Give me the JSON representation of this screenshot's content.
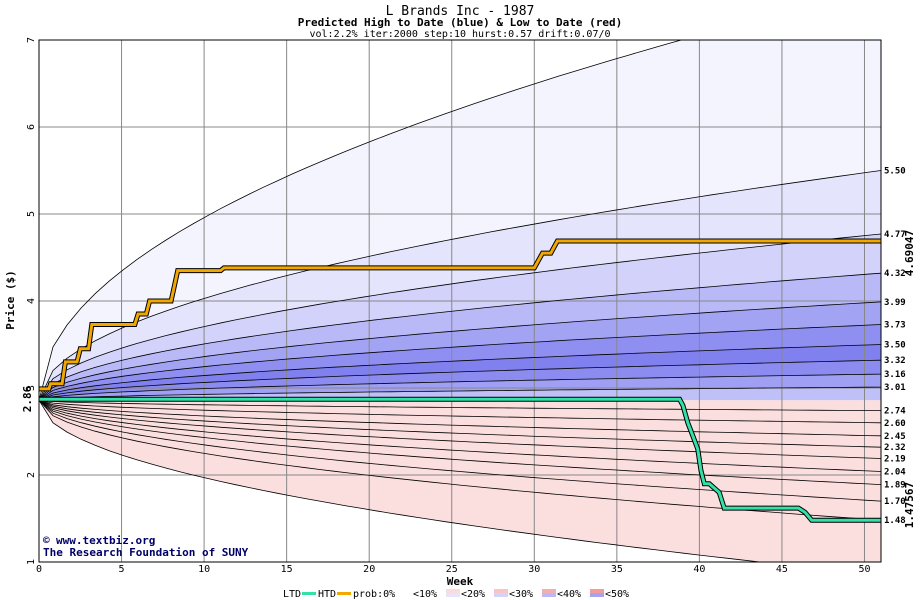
{
  "chart_data": {
    "type": "area",
    "title": "L Brands Inc - 1987",
    "subtitle": "Predicted High to Date (blue) &  Low to Date (red)",
    "params": "vol:2.2% iter:2000 step:10 hurst:0.57 drift:0.07/0",
    "xlabel": "Week",
    "ylabel": "Price ($)",
    "xlim": [
      0,
      51
    ],
    "ylim": [
      1,
      7
    ],
    "x_ticks": [
      "0",
      "5",
      "10",
      "15",
      "20",
      "25",
      "30",
      "35",
      "40",
      "45",
      "50"
    ],
    "y_ticks": [
      "1",
      "2",
      "3",
      "4",
      "5",
      "6",
      "7"
    ],
    "start_price_label": "2.86",
    "start_price": 2.86,
    "htd_value_label": "4.69047",
    "ltd_value_label": "1.47567",
    "right_labels": [
      "5.50",
      "4.77",
      "4.32",
      "3.99",
      "3.73",
      "3.50",
      "3.32",
      "3.16",
      "3.01",
      "2.74",
      "2.60",
      "2.45",
      "2.32",
      "2.19",
      "2.04",
      "1.89",
      "1.70",
      "1.48"
    ],
    "high_quantiles": [
      {
        "name": "outer",
        "end": 7.6
      },
      {
        "name": "p0",
        "end": 5.5
      },
      {
        "name": "p10",
        "end": 4.77
      },
      {
        "name": "p20",
        "end": 4.32
      },
      {
        "name": "p30",
        "end": 3.99
      },
      {
        "name": "p40",
        "end": 3.73
      },
      {
        "name": "p50",
        "end": 3.5
      },
      {
        "name": "p60",
        "end": 3.32
      },
      {
        "name": "p70",
        "end": 3.16
      },
      {
        "name": "p80",
        "end": 3.01
      }
    ],
    "low_quantiles": [
      {
        "name": "p80",
        "end": 2.74
      },
      {
        "name": "p70",
        "end": 2.6
      },
      {
        "name": "p60",
        "end": 2.45
      },
      {
        "name": "p50",
        "end": 2.32
      },
      {
        "name": "p40",
        "end": 2.19
      },
      {
        "name": "p30",
        "end": 2.04
      },
      {
        "name": "p20",
        "end": 1.89
      },
      {
        "name": "p10",
        "end": 1.7
      },
      {
        "name": "p0",
        "end": 1.48
      },
      {
        "name": "outer",
        "end": 0.85
      }
    ],
    "htd": {
      "x": [
        0,
        0.6,
        0.7,
        1.4,
        1.6,
        2.3,
        2.5,
        3.0,
        3.2,
        5.8,
        6.0,
        6.5,
        6.7,
        8.0,
        8.4,
        11.0,
        11.2,
        30.0,
        30.5,
        31.0,
        31.4,
        51
      ],
      "y": [
        2.99,
        2.99,
        3.05,
        3.05,
        3.3,
        3.3,
        3.45,
        3.45,
        3.73,
        3.73,
        3.85,
        3.85,
        4.0,
        4.0,
        4.35,
        4.35,
        4.38,
        4.38,
        4.55,
        4.55,
        4.69,
        4.69
      ]
    },
    "ltd": {
      "x": [
        0,
        38.8,
        39.0,
        39.3,
        39.6,
        39.9,
        40.1,
        40.3,
        40.6,
        41.2,
        41.5,
        46.0,
        46.4,
        46.8,
        51
      ],
      "y": [
        2.87,
        2.87,
        2.8,
        2.6,
        2.45,
        2.3,
        2.05,
        1.9,
        1.9,
        1.8,
        1.62,
        1.62,
        1.57,
        1.48,
        1.48
      ]
    },
    "band_colors_high": [
      "#f4f4ff",
      "#e4e4fd",
      "#d2d2fb",
      "#b9b9f7",
      "#a3a3f4",
      "#8f8ff2",
      "#8080ee",
      "#8c8cf0",
      "#9f9ff3",
      "#c0c0f8"
    ],
    "band_colors_low": [
      "#fdf0f0",
      "#fbdcdc",
      "#f8c4c4",
      "#f5aeae",
      "#f39a9a",
      "#f18a8a",
      "#f08686",
      "#f29595",
      "#f6b1b1",
      "#fbdede"
    ],
    "htd_color": "#f0a800",
    "ltd_color": "#33e0a8",
    "htd_label_color": "#a07800",
    "ltd_label_color": "#009966"
  },
  "credit_line1": "www.textbiz.org",
  "credit_line2": "The Research Foundation of SUNY",
  "legend": {
    "ltd_label": "LTD",
    "htd_label": "HTD",
    "prob_label": "prob:0%",
    "items": [
      "<10%",
      "<20%",
      "<30%",
      "<40%",
      "<50%"
    ]
  }
}
